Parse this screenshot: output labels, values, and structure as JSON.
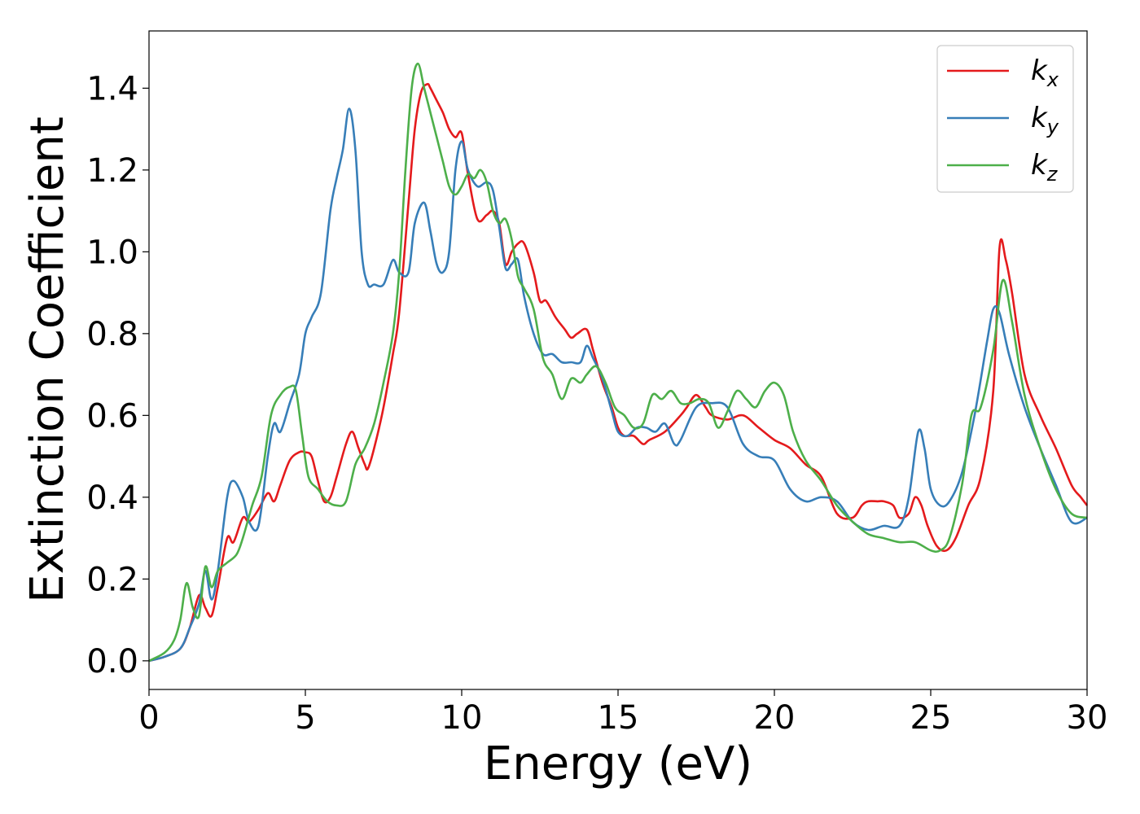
{
  "chart_data": {
    "type": "line",
    "title": "",
    "xlabel": "Energy (eV)",
    "ylabel": "Extinction Coefficient",
    "xlim": [
      0,
      30
    ],
    "ylim": [
      -0.07,
      1.54
    ],
    "xticks": [
      0,
      5,
      10,
      15,
      20,
      25,
      30
    ],
    "xtick_labels": [
      "0",
      "5",
      "10",
      "15",
      "20",
      "25",
      "30"
    ],
    "yticks": [
      0.0,
      0.2,
      0.4,
      0.6,
      0.8,
      1.0,
      1.2,
      1.4
    ],
    "ytick_labels": [
      "0.0",
      "0.2",
      "0.4",
      "0.6",
      "0.8",
      "1.0",
      "1.2",
      "1.4"
    ],
    "grid": false,
    "legend_position": "top-right",
    "series": [
      {
        "name": "k_x",
        "label_main": "k",
        "label_sub": "x",
        "color": "#e41a1c",
        "x": [
          0,
          0.5,
          1.0,
          1.3,
          1.6,
          1.8,
          2.0,
          2.2,
          2.5,
          2.7,
          3.0,
          3.2,
          3.5,
          3.8,
          4.0,
          4.2,
          4.5,
          4.8,
          5.0,
          5.2,
          5.4,
          5.6,
          5.8,
          6.0,
          6.3,
          6.5,
          6.7,
          6.9,
          7.0,
          7.2,
          7.5,
          7.8,
          8.0,
          8.3,
          8.5,
          8.7,
          8.9,
          9.0,
          9.2,
          9.4,
          9.6,
          9.8,
          10.0,
          10.2,
          10.5,
          10.8,
          11.0,
          11.2,
          11.4,
          11.6,
          11.8,
          12.0,
          12.3,
          12.5,
          12.7,
          13.0,
          13.3,
          13.5,
          13.7,
          14.0,
          14.2,
          14.5,
          14.8,
          15.0,
          15.2,
          15.5,
          15.8,
          16.0,
          16.5,
          17.0,
          17.2,
          17.5,
          17.8,
          18.0,
          18.5,
          19.0,
          19.5,
          20.0,
          20.5,
          21.0,
          21.5,
          22.0,
          22.5,
          22.8,
          23.0,
          23.3,
          23.5,
          23.8,
          24.0,
          24.3,
          24.5,
          24.7,
          24.9,
          25.2,
          25.5,
          25.8,
          26.2,
          26.6,
          27.0,
          27.2,
          27.4,
          27.6,
          28.0,
          28.5,
          29.0,
          29.5,
          29.8,
          30.0
        ],
        "y": [
          0,
          0.01,
          0.03,
          0.08,
          0.16,
          0.13,
          0.11,
          0.18,
          0.3,
          0.29,
          0.35,
          0.34,
          0.37,
          0.41,
          0.39,
          0.43,
          0.49,
          0.51,
          0.51,
          0.5,
          0.44,
          0.39,
          0.4,
          0.45,
          0.53,
          0.56,
          0.52,
          0.48,
          0.47,
          0.52,
          0.62,
          0.75,
          0.85,
          1.12,
          1.3,
          1.39,
          1.41,
          1.4,
          1.37,
          1.34,
          1.3,
          1.28,
          1.29,
          1.19,
          1.08,
          1.09,
          1.1,
          1.07,
          0.97,
          1.0,
          1.02,
          1.02,
          0.95,
          0.88,
          0.88,
          0.84,
          0.81,
          0.79,
          0.8,
          0.81,
          0.76,
          0.68,
          0.62,
          0.57,
          0.55,
          0.55,
          0.53,
          0.54,
          0.56,
          0.6,
          0.62,
          0.65,
          0.62,
          0.6,
          0.59,
          0.6,
          0.57,
          0.54,
          0.52,
          0.48,
          0.45,
          0.36,
          0.35,
          0.38,
          0.39,
          0.39,
          0.39,
          0.38,
          0.35,
          0.36,
          0.4,
          0.38,
          0.33,
          0.28,
          0.27,
          0.3,
          0.38,
          0.45,
          0.66,
          1.01,
          0.98,
          0.9,
          0.7,
          0.6,
          0.52,
          0.43,
          0.4,
          0.38
        ]
      },
      {
        "name": "k_y",
        "label_main": "k",
        "label_sub": "y",
        "color": "#377eb8",
        "x": [
          0,
          0.5,
          1.0,
          1.3,
          1.6,
          1.8,
          2.0,
          2.2,
          2.5,
          2.7,
          3.0,
          3.2,
          3.5,
          3.8,
          4.0,
          4.2,
          4.5,
          4.8,
          5.0,
          5.2,
          5.5,
          5.8,
          6.0,
          6.2,
          6.4,
          6.6,
          6.8,
          7.0,
          7.2,
          7.5,
          7.8,
          8.0,
          8.3,
          8.5,
          8.8,
          9.0,
          9.2,
          9.4,
          9.6,
          9.8,
          10.0,
          10.2,
          10.5,
          10.8,
          11.0,
          11.2,
          11.4,
          11.6,
          11.8,
          12.0,
          12.3,
          12.6,
          12.9,
          13.2,
          13.5,
          13.8,
          14.0,
          14.2,
          14.5,
          14.8,
          15.0,
          15.3,
          15.6,
          15.9,
          16.2,
          16.5,
          16.8,
          17.0,
          17.5,
          18.0,
          18.5,
          19.0,
          19.5,
          20.0,
          20.5,
          21.0,
          21.5,
          22.0,
          22.5,
          23.0,
          23.5,
          24.0,
          24.3,
          24.6,
          24.8,
          25.0,
          25.3,
          25.6,
          26.0,
          26.4,
          26.8,
          27.0,
          27.2,
          27.5,
          28.0,
          28.5,
          29.0,
          29.5,
          30.0
        ],
        "y": [
          0,
          0.01,
          0.03,
          0.08,
          0.14,
          0.22,
          0.15,
          0.22,
          0.4,
          0.44,
          0.4,
          0.34,
          0.33,
          0.5,
          0.58,
          0.56,
          0.63,
          0.7,
          0.8,
          0.84,
          0.9,
          1.1,
          1.18,
          1.25,
          1.35,
          1.25,
          1.0,
          0.92,
          0.92,
          0.92,
          0.98,
          0.95,
          0.95,
          1.07,
          1.12,
          1.05,
          0.97,
          0.95,
          1.0,
          1.2,
          1.27,
          1.2,
          1.16,
          1.17,
          1.15,
          1.06,
          0.96,
          0.97,
          0.98,
          0.89,
          0.8,
          0.75,
          0.75,
          0.73,
          0.73,
          0.73,
          0.77,
          0.74,
          0.69,
          0.61,
          0.56,
          0.55,
          0.57,
          0.57,
          0.56,
          0.58,
          0.53,
          0.54,
          0.62,
          0.63,
          0.62,
          0.53,
          0.5,
          0.49,
          0.42,
          0.39,
          0.4,
          0.39,
          0.34,
          0.32,
          0.33,
          0.33,
          0.4,
          0.56,
          0.52,
          0.42,
          0.38,
          0.39,
          0.46,
          0.6,
          0.78,
          0.86,
          0.85,
          0.75,
          0.62,
          0.52,
          0.43,
          0.34,
          0.35
        ]
      },
      {
        "name": "k_z",
        "label_main": "k",
        "label_sub": "z",
        "color": "#4daf4a",
        "x": [
          0,
          0.5,
          0.8,
          1.0,
          1.2,
          1.4,
          1.6,
          1.8,
          2.0,
          2.2,
          2.5,
          2.8,
          3.0,
          3.3,
          3.6,
          3.9,
          4.2,
          4.5,
          4.7,
          4.9,
          5.1,
          5.4,
          5.7,
          6.0,
          6.3,
          6.6,
          6.9,
          7.2,
          7.5,
          7.8,
          8.0,
          8.2,
          8.4,
          8.6,
          8.8,
          9.0,
          9.2,
          9.4,
          9.6,
          9.8,
          10.0,
          10.2,
          10.4,
          10.6,
          10.8,
          11.0,
          11.2,
          11.4,
          11.6,
          11.8,
          12.0,
          12.3,
          12.6,
          12.9,
          13.2,
          13.5,
          13.8,
          14.0,
          14.3,
          14.6,
          14.9,
          15.2,
          15.5,
          15.8,
          16.1,
          16.4,
          16.7,
          17.0,
          17.3,
          17.6,
          17.9,
          18.2,
          18.5,
          18.8,
          19.1,
          19.4,
          19.7,
          20.0,
          20.3,
          20.6,
          21.0,
          21.5,
          22.0,
          22.5,
          23.0,
          23.5,
          24.0,
          24.5,
          25.0,
          25.3,
          25.6,
          26.0,
          26.3,
          26.6,
          27.0,
          27.3,
          27.6,
          28.0,
          28.5,
          29.0,
          29.5,
          30.0
        ],
        "y": [
          0,
          0.02,
          0.05,
          0.1,
          0.19,
          0.13,
          0.11,
          0.23,
          0.18,
          0.22,
          0.24,
          0.26,
          0.3,
          0.38,
          0.45,
          0.6,
          0.65,
          0.67,
          0.66,
          0.55,
          0.45,
          0.42,
          0.39,
          0.38,
          0.39,
          0.48,
          0.52,
          0.58,
          0.68,
          0.8,
          0.95,
          1.2,
          1.4,
          1.46,
          1.4,
          1.34,
          1.28,
          1.22,
          1.16,
          1.14,
          1.16,
          1.19,
          1.18,
          1.2,
          1.17,
          1.1,
          1.07,
          1.08,
          1.03,
          0.94,
          0.91,
          0.86,
          0.74,
          0.7,
          0.64,
          0.69,
          0.68,
          0.7,
          0.72,
          0.68,
          0.62,
          0.6,
          0.57,
          0.58,
          0.65,
          0.64,
          0.66,
          0.63,
          0.63,
          0.64,
          0.63,
          0.57,
          0.61,
          0.66,
          0.64,
          0.62,
          0.66,
          0.68,
          0.65,
          0.56,
          0.49,
          0.44,
          0.38,
          0.34,
          0.31,
          0.3,
          0.29,
          0.29,
          0.27,
          0.27,
          0.3,
          0.43,
          0.6,
          0.62,
          0.76,
          0.93,
          0.83,
          0.65,
          0.52,
          0.42,
          0.36,
          0.35
        ]
      }
    ]
  }
}
